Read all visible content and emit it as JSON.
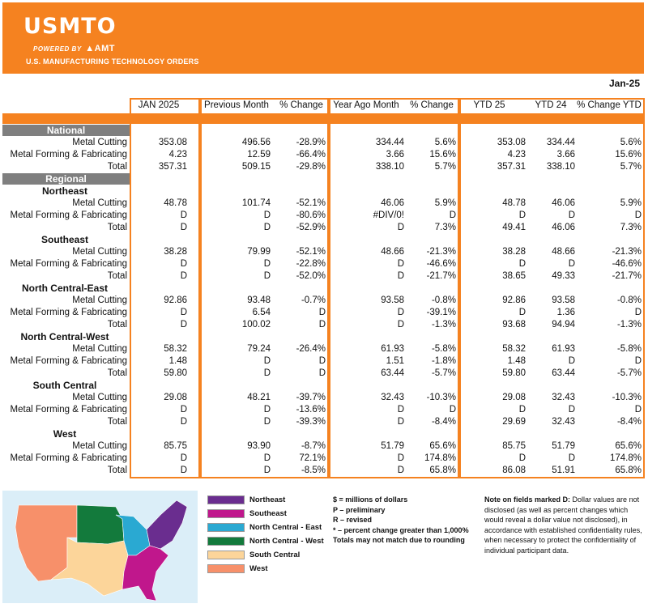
{
  "header": {
    "logo": "USMTO",
    "powered_by": "POWERED BY",
    "amt": "AMT",
    "subtitle": "U.S. MANUFACTURING TECHNOLOGY ORDERS",
    "colors": {
      "brand": "#f58220"
    }
  },
  "month": "Jan-25",
  "columns": [
    "JAN 2025",
    "Previous Month",
    "% Change",
    "Year Ago Month",
    "% Change",
    "YTD 25",
    "YTD 24",
    "% Change YTD"
  ],
  "national": {
    "label": "National",
    "rows": [
      {
        "label": "Metal Cutting",
        "values": [
          "353.08",
          "496.56",
          "-28.9%",
          "334.44",
          "5.6%",
          "353.08",
          "334.44",
          "5.6%"
        ]
      },
      {
        "label": "Metal Forming & Fabricating",
        "values": [
          "4.23",
          "12.59",
          "-66.4%",
          "3.66",
          "15.6%",
          "4.23",
          "3.66",
          "15.6%"
        ]
      },
      {
        "label": "Total",
        "values": [
          "357.31",
          "509.15",
          "-29.8%",
          "338.10",
          "5.7%",
          "357.31",
          "338.10",
          "5.7%"
        ]
      }
    ]
  },
  "regional_label": "Regional",
  "regions": [
    {
      "name": "Northeast",
      "rows": [
        {
          "label": "Metal Cutting",
          "values": [
            "48.78",
            "101.74",
            "-52.1%",
            "46.06",
            "5.9%",
            "48.78",
            "46.06",
            "5.9%"
          ]
        },
        {
          "label": "Metal Forming & Fabricating",
          "values": [
            "D",
            "D",
            "-80.6%",
            "#DIV/0!",
            "D",
            "D",
            "D",
            "D"
          ]
        },
        {
          "label": "Total",
          "values": [
            "D",
            "D",
            "-52.9%",
            "D",
            "7.3%",
            "49.41",
            "46.06",
            "7.3%"
          ]
        }
      ]
    },
    {
      "name": "Southeast",
      "rows": [
        {
          "label": "Metal Cutting",
          "values": [
            "38.28",
            "79.99",
            "-52.1%",
            "48.66",
            "-21.3%",
            "38.28",
            "48.66",
            "-21.3%"
          ]
        },
        {
          "label": "Metal Forming & Fabricating",
          "values": [
            "D",
            "D",
            "-22.8%",
            "D",
            "-46.6%",
            "D",
            "D",
            "-46.6%"
          ]
        },
        {
          "label": "Total",
          "values": [
            "D",
            "D",
            "-52.0%",
            "D",
            "-21.7%",
            "38.65",
            "49.33",
            "-21.7%"
          ]
        }
      ]
    },
    {
      "name": "North Central-East",
      "rows": [
        {
          "label": "Metal Cutting",
          "values": [
            "92.86",
            "93.48",
            "-0.7%",
            "93.58",
            "-0.8%",
            "92.86",
            "93.58",
            "-0.8%"
          ]
        },
        {
          "label": "Metal Forming & Fabricating",
          "values": [
            "D",
            "6.54",
            "D",
            "D",
            "-39.1%",
            "D",
            "1.36",
            "D"
          ]
        },
        {
          "label": "Total",
          "values": [
            "D",
            "100.02",
            "D",
            "D",
            "-1.3%",
            "93.68",
            "94.94",
            "-1.3%"
          ]
        }
      ]
    },
    {
      "name": "North Central-West",
      "rows": [
        {
          "label": "Metal Cutting",
          "values": [
            "58.32",
            "79.24",
            "-26.4%",
            "61.93",
            "-5.8%",
            "58.32",
            "61.93",
            "-5.8%"
          ]
        },
        {
          "label": "Metal Forming & Fabricating",
          "values": [
            "1.48",
            "D",
            "D",
            "1.51",
            "-1.8%",
            "1.48",
            "D",
            "D"
          ]
        },
        {
          "label": "Total",
          "values": [
            "59.80",
            "D",
            "D",
            "63.44",
            "-5.7%",
            "59.80",
            "63.44",
            "-5.7%"
          ]
        }
      ]
    },
    {
      "name": "South Central",
      "rows": [
        {
          "label": "Metal Cutting",
          "values": [
            "29.08",
            "48.21",
            "-39.7%",
            "32.43",
            "-10.3%",
            "29.08",
            "32.43",
            "-10.3%"
          ]
        },
        {
          "label": "Metal Forming & Fabricating",
          "values": [
            "D",
            "D",
            "-13.6%",
            "D",
            "D",
            "D",
            "D",
            "D"
          ]
        },
        {
          "label": "Total",
          "values": [
            "D",
            "D",
            "-39.3%",
            "D",
            "-8.4%",
            "29.69",
            "32.43",
            "-8.4%"
          ]
        }
      ]
    },
    {
      "name": "West",
      "rows": [
        {
          "label": "Metal Cutting",
          "values": [
            "85.75",
            "93.90",
            "-8.7%",
            "51.79",
            "65.6%",
            "85.75",
            "51.79",
            "65.6%"
          ]
        },
        {
          "label": "Metal Forming & Fabricating",
          "values": [
            "D",
            "D",
            "72.1%",
            "D",
            "174.8%",
            "D",
            "D",
            "174.8%"
          ]
        },
        {
          "label": "Total",
          "values": [
            "D",
            "D",
            "-8.5%",
            "D",
            "65.8%",
            "86.08",
            "51.91",
            "65.8%"
          ]
        }
      ]
    }
  ],
  "legend": [
    {
      "label": "Northeast",
      "color": "#6a2d8f"
    },
    {
      "label": "Southeast",
      "color": "#c0178c"
    },
    {
      "label": "North Central - East",
      "color": "#2aa9d2"
    },
    {
      "label": "North Central - West",
      "color": "#137a3c"
    },
    {
      "label": "South Central",
      "color": "#fcd59a"
    },
    {
      "label": "West",
      "color": "#f7906a"
    }
  ],
  "notes": [
    "$ = millions of dollars",
    "P – preliminary",
    "R – revised",
    "* – percent change greater than 1,000%",
    "Totals may not match due to rounding"
  ],
  "disclosure": {
    "bold": "Note on fields marked D:",
    "text": " Dollar values are not disclosed (as well as percent changes which would reveal a dollar value not disclosed), in accordance with established confidentiality rules, when necessary to protect the confidentiality of individual participant data."
  }
}
